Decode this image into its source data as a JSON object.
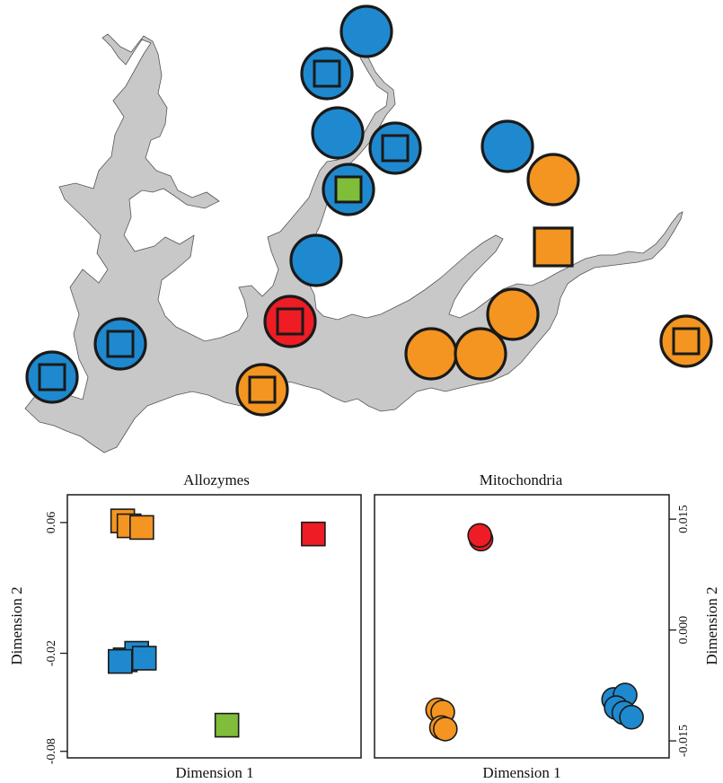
{
  "colors": {
    "blue": "#1f89cf",
    "orange": "#f39520",
    "red": "#ee1c24",
    "green": "#7fbd3a",
    "outline": "#1a1a1a",
    "lake": "#c8c8c8"
  },
  "map": {
    "sites": [
      {
        "color": "blue",
        "inner_square": false
      },
      {
        "color": "blue",
        "inner_square": true
      },
      {
        "color": "blue",
        "inner_square": false
      },
      {
        "color": "blue",
        "inner_square": true
      },
      {
        "color": "blue",
        "inner_square": true,
        "inner_color": "green"
      },
      {
        "color": "blue",
        "inner_square": false
      },
      {
        "color": "red",
        "inner_square": true
      },
      {
        "color": "blue",
        "inner_square": true
      },
      {
        "color": "blue",
        "inner_square": true
      },
      {
        "color": "orange",
        "inner_square": true
      },
      {
        "color": "blue",
        "inner_square": false
      },
      {
        "color": "orange",
        "inner_square": false
      },
      {
        "color": "orange",
        "square_only": true
      },
      {
        "color": "orange",
        "inner_square": false
      },
      {
        "color": "orange",
        "inner_square": false
      },
      {
        "color": "orange",
        "inner_square": false
      },
      {
        "color": "orange",
        "inner_square": true
      }
    ]
  },
  "chart_data": [
    {
      "type": "scatter",
      "title": "Allozymes",
      "xlabel": "Dimension 1",
      "ylabel": "Dimension 2",
      "marker": "square",
      "y_axis_side": "left",
      "yticks": [
        "0.06",
        "-0.02",
        "-0.08"
      ],
      "ytick_values": [
        0.06,
        -0.02,
        -0.08
      ],
      "ylim": [
        -0.084,
        0.077
      ],
      "xlim": [
        0,
        1
      ],
      "points": [
        {
          "x": 0.14,
          "y": 0.061,
          "color": "orange"
        },
        {
          "x": 0.165,
          "y": 0.058,
          "color": "orange"
        },
        {
          "x": 0.215,
          "y": 0.057,
          "color": "orange"
        },
        {
          "x": 0.15,
          "y": -0.024,
          "color": "blue"
        },
        {
          "x": 0.195,
          "y": -0.02,
          "color": "blue"
        },
        {
          "x": 0.225,
          "y": -0.023,
          "color": "blue"
        },
        {
          "x": 0.13,
          "y": -0.025,
          "color": "blue"
        },
        {
          "x": 0.89,
          "y": 0.053,
          "color": "red"
        },
        {
          "x": 0.55,
          "y": -0.064,
          "color": "green"
        }
      ]
    },
    {
      "type": "scatter",
      "title": "Mitochondria",
      "xlabel": "Dimension 1",
      "ylabel": "Dimension 2",
      "marker": "circle",
      "y_axis_side": "right",
      "yticks": [
        "0.015",
        "0.000",
        "-0.015"
      ],
      "ytick_values": [
        0.015,
        0.0,
        -0.015
      ],
      "ylim": [
        -0.0173,
        0.0183
      ],
      "xlim": [
        0,
        1
      ],
      "points": [
        {
          "x": 0.34,
          "y": 0.0123,
          "color": "red"
        },
        {
          "x": 0.335,
          "y": 0.0128,
          "color": "red"
        },
        {
          "x": 0.17,
          "y": -0.0108,
          "color": "orange"
        },
        {
          "x": 0.19,
          "y": -0.0111,
          "color": "orange"
        },
        {
          "x": 0.185,
          "y": -0.0132,
          "color": "orange"
        },
        {
          "x": 0.2,
          "y": -0.0134,
          "color": "orange"
        },
        {
          "x": 0.86,
          "y": -0.0094,
          "color": "blue"
        },
        {
          "x": 0.905,
          "y": -0.0088,
          "color": "blue"
        },
        {
          "x": 0.87,
          "y": -0.0105,
          "color": "blue"
        },
        {
          "x": 0.9,
          "y": -0.0112,
          "color": "blue"
        },
        {
          "x": 0.93,
          "y": -0.0118,
          "color": "blue"
        }
      ]
    }
  ]
}
